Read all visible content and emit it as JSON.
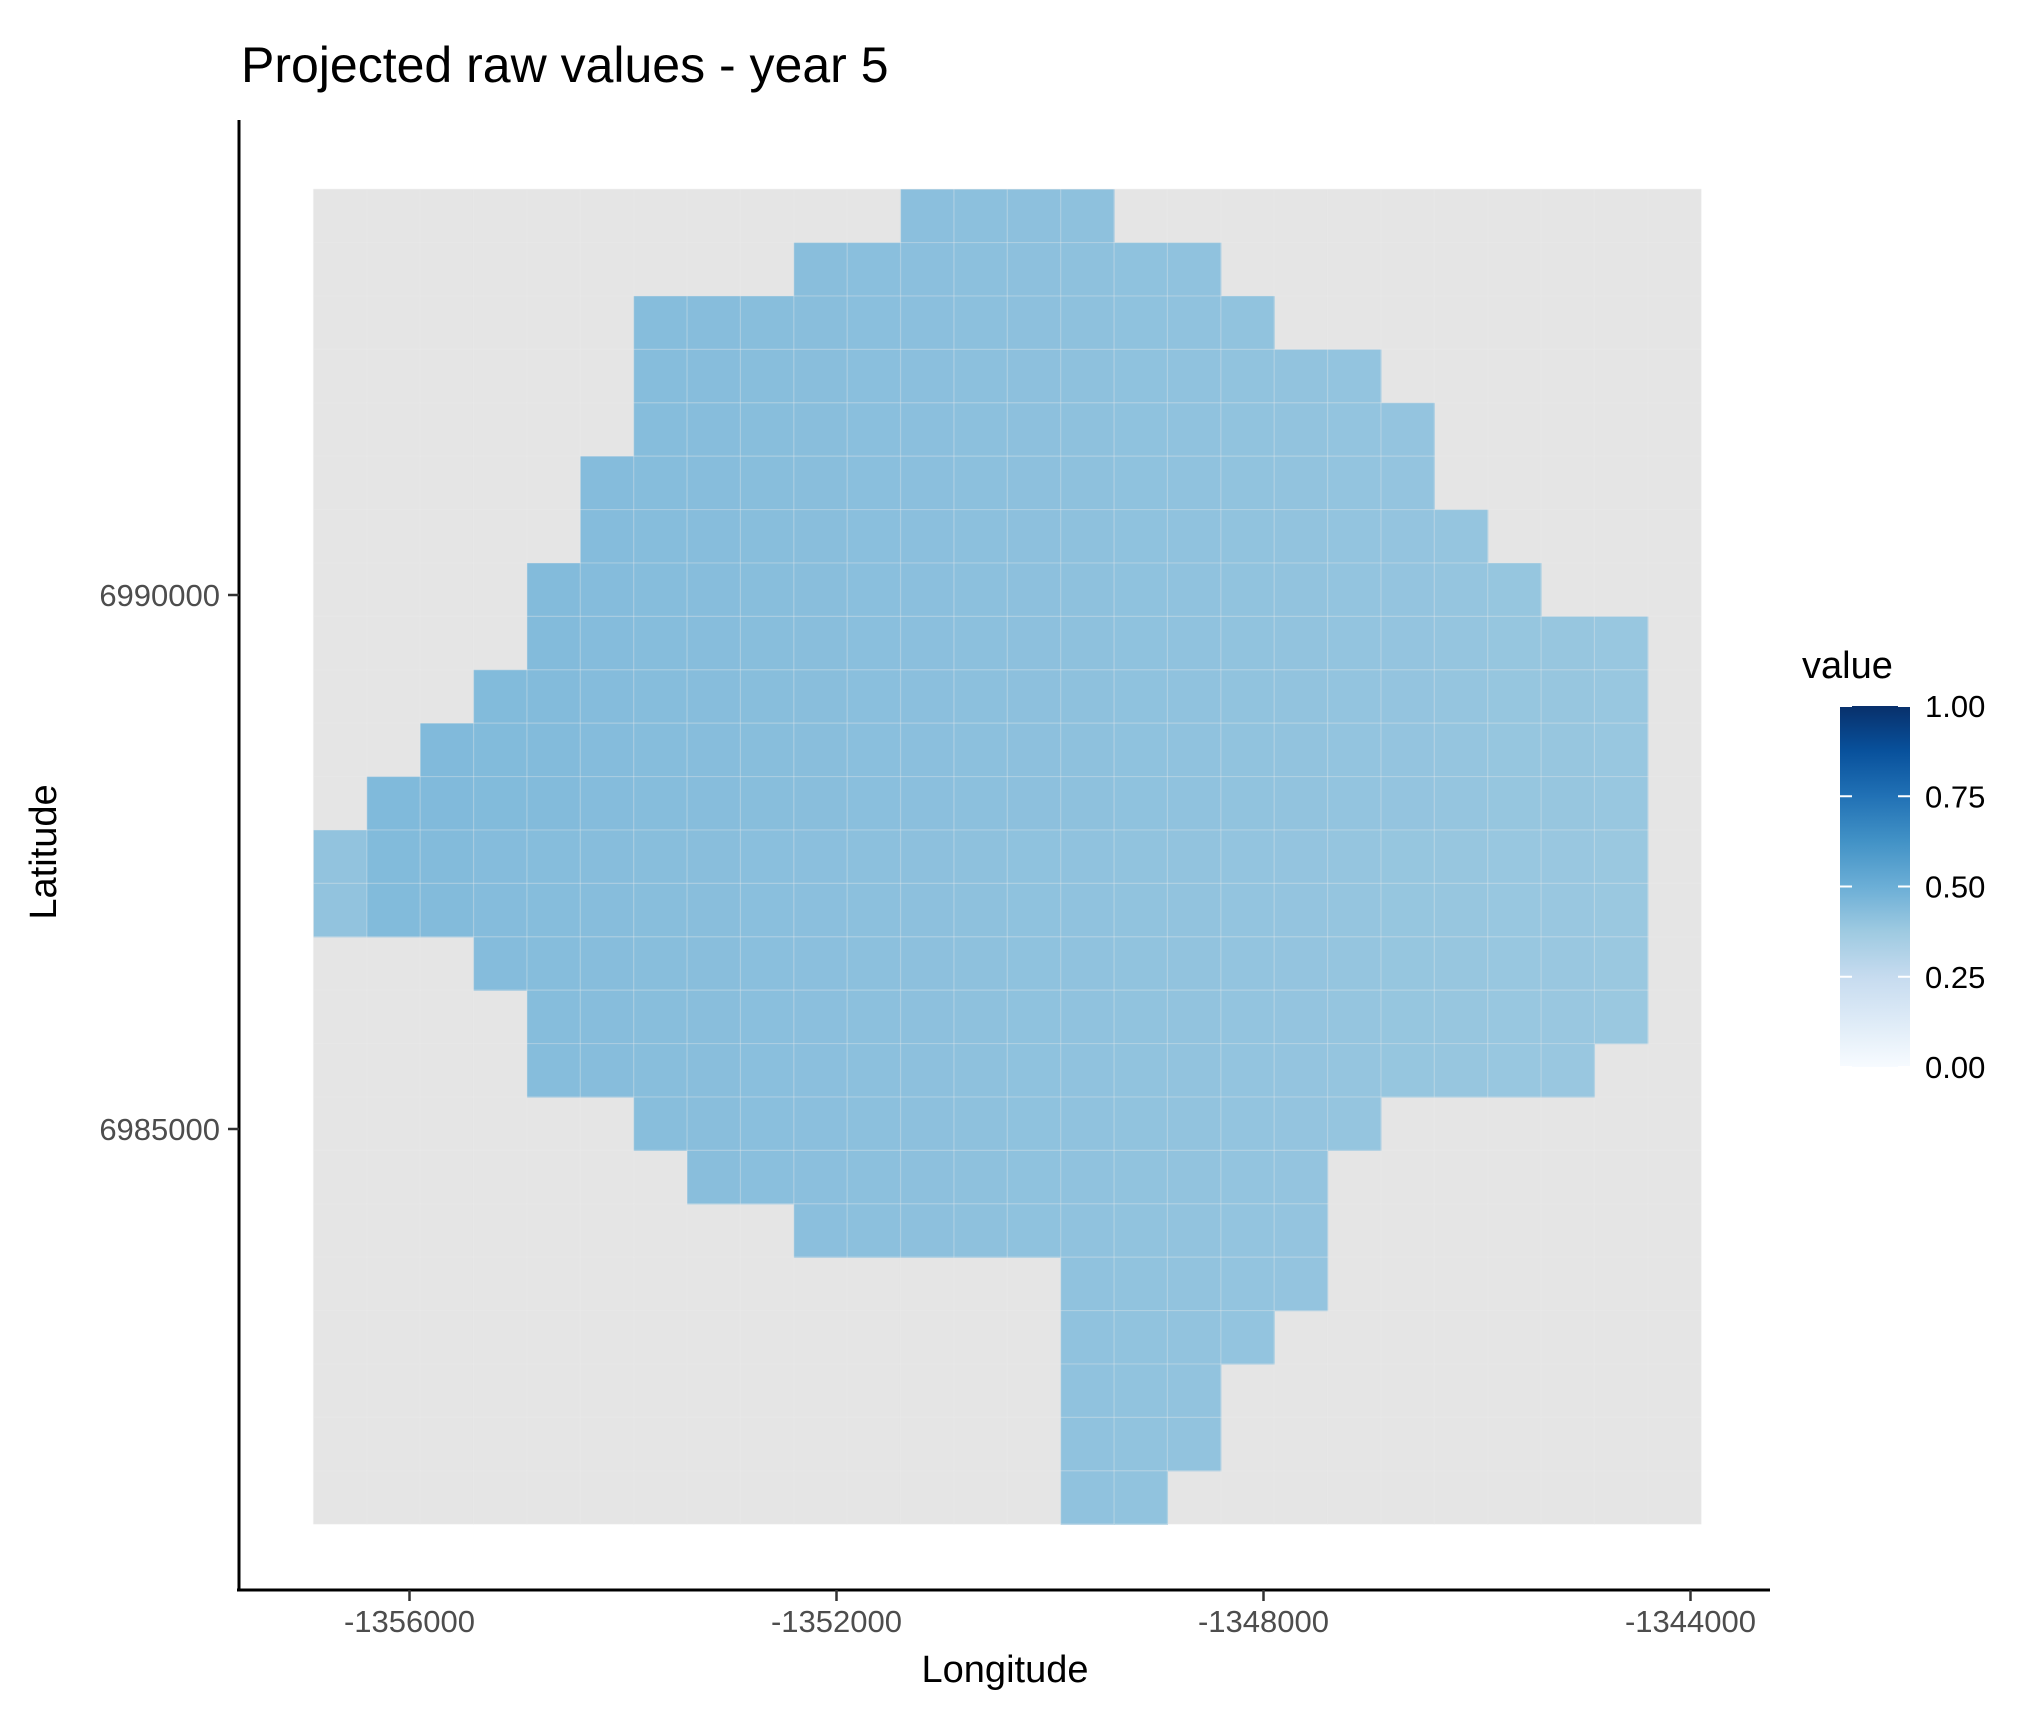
{
  "chart_data": {
    "type": "heatmap",
    "title": "Projected raw values - year 5",
    "xlabel": "Longitude",
    "ylabel": "Latitude",
    "x_ticks": [
      -1356000,
      -1352000,
      -1348000,
      -1344000
    ],
    "x_tick_labels": [
      "-1356000",
      "-1352000",
      "-1348000",
      "-1344000"
    ],
    "y_ticks": [
      6990000,
      6985000
    ],
    "y_tick_labels": [
      "6990000",
      "6985000"
    ],
    "grid": {
      "x_start": -1356900,
      "y_top": 6993800,
      "cell_size": 500,
      "cols": 26,
      "rows": 25
    },
    "fill_value": 0.42,
    "row_spans": [
      [
        [
          11,
          14
        ]
      ],
      [
        [
          9,
          16
        ]
      ],
      [
        [
          6,
          17
        ]
      ],
      [
        [
          6,
          19
        ]
      ],
      [
        [
          6,
          20
        ]
      ],
      [
        [
          5,
          20
        ]
      ],
      [
        [
          5,
          21
        ]
      ],
      [
        [
          4,
          22
        ]
      ],
      [
        [
          4,
          24
        ]
      ],
      [
        [
          3,
          24
        ]
      ],
      [
        [
          2,
          24
        ]
      ],
      [
        [
          1,
          24
        ]
      ],
      [
        [
          0,
          24
        ]
      ],
      [
        [
          0,
          24
        ]
      ],
      [
        [
          3,
          24
        ]
      ],
      [
        [
          4,
          24
        ]
      ],
      [
        [
          4,
          23
        ]
      ],
      [
        [
          6,
          19
        ]
      ],
      [
        [
          7,
          18
        ]
      ],
      [
        [
          9,
          18
        ]
      ],
      [
        [
          14,
          18
        ]
      ],
      [
        [
          14,
          17
        ]
      ],
      [
        [
          14,
          16
        ]
      ],
      [
        [
          14,
          16
        ]
      ],
      [
        [
          14,
          15
        ]
      ]
    ],
    "legend": {
      "title": "value",
      "position": "right",
      "labels": [
        "1.00",
        "0.75",
        "0.50",
        "0.25",
        "0.00"
      ],
      "values": [
        1.0,
        0.75,
        0.5,
        0.25,
        0.0
      ],
      "colors": [
        "#f7fbff",
        "#deebf7",
        "#c6dbef",
        "#9ecae1",
        "#6baed6",
        "#4292c6",
        "#2171b5",
        "#08519c",
        "#08306b"
      ]
    },
    "panel_background": "#e5e5e5",
    "grid_color": "#ebebeb"
  }
}
